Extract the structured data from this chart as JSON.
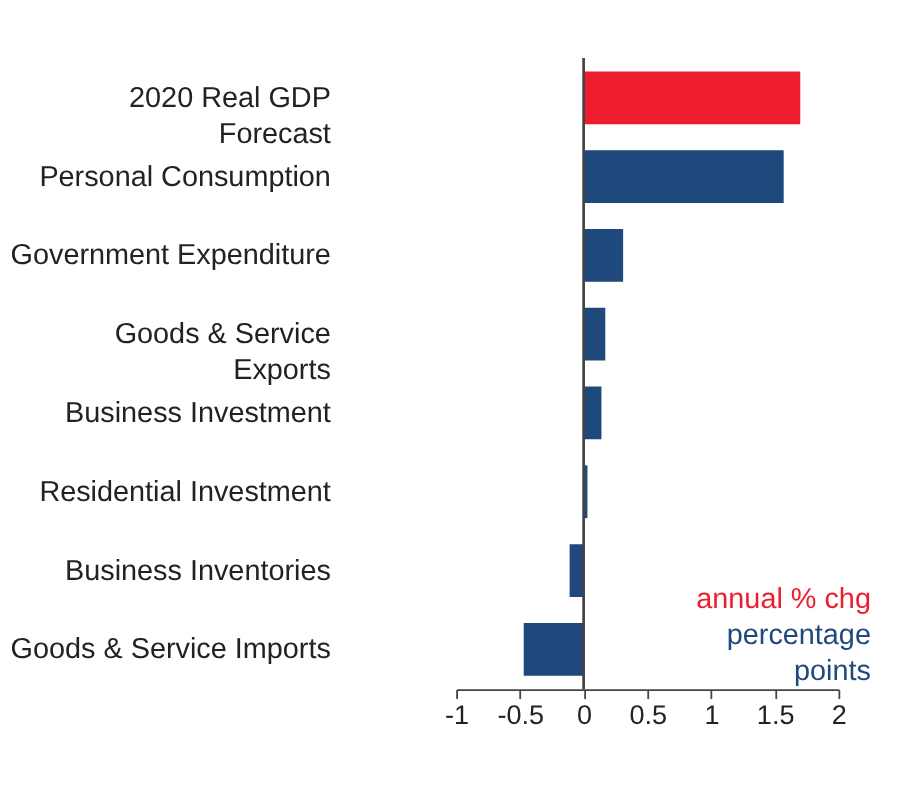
{
  "chart_data": {
    "type": "bar",
    "orientation": "horizontal",
    "categories": [
      "2020 Real GDP\nForecast",
      "Personal Consumption",
      "Government Expenditure",
      "Goods & Service\nExports",
      "Business Investment",
      "Residential Investment",
      "Business Inventories",
      "Goods & Service Imports"
    ],
    "series": [
      {
        "name": "annual % chg",
        "color": "#ed1c2e",
        "values": [
          1.7,
          null,
          null,
          null,
          null,
          null,
          null,
          null
        ]
      },
      {
        "name": "percentage\npoints",
        "color": "#1f497d",
        "values": [
          null,
          1.57,
          0.31,
          0.17,
          0.14,
          0.03,
          -0.11,
          -0.47
        ]
      }
    ],
    "xlim": [
      -1,
      2
    ],
    "xticks": [
      -1,
      -0.5,
      0,
      0.5,
      1,
      1.5,
      2
    ],
    "legend": "bottom right"
  }
}
